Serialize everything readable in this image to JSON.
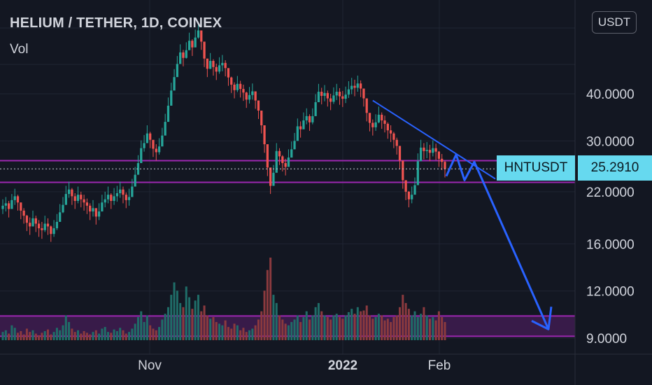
{
  "header": {
    "title": "HELIUM / TETHER, 1D, COINEX",
    "indicator": "Vol",
    "currency_button": "USDT"
  },
  "last_price": {
    "symbol": "HNTUSDT",
    "price": "25.2910"
  },
  "colors": {
    "background": "#131722",
    "up": "#26a69a",
    "down": "#ef5350",
    "volume_up": "#1f6d68",
    "volume_down": "#8b3a3e",
    "zone": "#9c27b0",
    "trendline": "#2962ff",
    "tag": "#66d9ef"
  },
  "chart_data": {
    "type": "candlestick",
    "title": "HELIUM / TETHER, 1D, COINEX",
    "xlabel": "",
    "ylabel": "",
    "x_ticks": [
      "Nov",
      "2022",
      "Feb"
    ],
    "y_ticks": [
      "40.0000",
      "30.0000",
      "22.0000",
      "16.0000",
      "12.0000",
      "9.0000"
    ],
    "y_scale": "log",
    "ylim": [
      8.85,
      66
    ],
    "grid": true,
    "legend": "none",
    "last_price": 25.291,
    "series": [
      {
        "name": "Price",
        "close": [
          20.2,
          20.5,
          19.8,
          20.9,
          21.4,
          20.6,
          19.6,
          19.0,
          18.2,
          17.8,
          18.7,
          18.1,
          17.6,
          17.4,
          18.1,
          17.8,
          17.0,
          17.6,
          18.3,
          19.4,
          20.3,
          21.7,
          22.3,
          21.4,
          20.8,
          21.6,
          21.0,
          20.6,
          20.2,
          19.5,
          19.9,
          18.9,
          19.5,
          20.6,
          21.0,
          21.6,
          20.8,
          21.4,
          21.8,
          22.3,
          21.6,
          20.9,
          21.3,
          22.7,
          24.4,
          26.2,
          28.7,
          29.6,
          31.4,
          30.2,
          28.6,
          28.0,
          29.0,
          31.0,
          33.7,
          37.2,
          40.8,
          44.3,
          48.0,
          51.5,
          49.8,
          52.2,
          55.3,
          53.1,
          56.4,
          58.9,
          55.0,
          49.6,
          46.6,
          48.9,
          47.1,
          45.8,
          47.6,
          48.3,
          46.8,
          44.2,
          42.3,
          40.9,
          42.5,
          41.2,
          40.3,
          38.6,
          39.7,
          40.6,
          38.4,
          36.1,
          33.0,
          29.4,
          25.5,
          22.8,
          24.7,
          28.2,
          27.3,
          26.2,
          25.6,
          27.1,
          28.5,
          30.0,
          32.8,
          32.2,
          34.0,
          34.9,
          33.6,
          34.9,
          38.0,
          40.5,
          39.5,
          40.2,
          38.9,
          38.1,
          39.6,
          40.5,
          39.4,
          38.8,
          39.8,
          41.1,
          42.0,
          41.5,
          42.6,
          41.3,
          38.9,
          35.6,
          33.5,
          32.6,
          33.6,
          35.2,
          34.0,
          33.3,
          32.0,
          31.4,
          30.2,
          29.1,
          26.6,
          23.6,
          22.0,
          21.0,
          21.6,
          22.9,
          26.5,
          28.8,
          28.2,
          28.4,
          27.9,
          28.7,
          28.1,
          26.9,
          26.4,
          25.3
        ],
        "high": [
          21.0,
          21.3,
          20.8,
          21.7,
          22.4,
          21.6,
          20.6,
          19.9,
          19.1,
          18.8,
          19.6,
          19.0,
          18.5,
          18.3,
          19.0,
          18.7,
          17.9,
          18.5,
          19.2,
          20.4,
          21.3,
          22.8,
          23.4,
          22.5,
          21.8,
          22.7,
          22.0,
          21.6,
          21.1,
          20.5,
          20.9,
          19.9,
          20.5,
          21.6,
          22.0,
          22.7,
          21.8,
          22.5,
          22.8,
          23.4,
          22.7,
          21.9,
          22.4,
          23.8,
          25.6,
          27.5,
          30.1,
          31.1,
          33.0,
          31.7,
          30.0,
          29.4,
          30.5,
          32.5,
          35.4,
          39.1,
          42.8,
          46.5,
          50.4,
          54.1,
          52.3,
          54.8,
          58.1,
          55.8,
          59.2,
          61.8,
          57.8,
          52.1,
          48.9,
          51.3,
          49.4,
          48.1,
          50.0,
          50.7,
          49.1,
          46.4,
          44.4,
          42.9,
          44.6,
          43.3,
          42.3,
          40.5,
          41.7,
          42.6,
          40.3,
          37.9,
          34.7,
          30.9,
          26.8,
          23.9,
          25.9,
          29.6,
          28.7,
          27.5,
          26.9,
          28.5,
          29.9,
          31.5,
          34.4,
          33.8,
          35.7,
          36.6,
          35.3,
          36.6,
          39.9,
          42.5,
          41.5,
          42.2,
          40.8,
          40.0,
          41.6,
          42.5,
          41.4,
          40.7,
          41.8,
          43.2,
          44.1,
          43.6,
          44.7,
          43.4,
          40.8,
          37.4,
          35.2,
          34.2,
          35.3,
          37.0,
          35.7,
          35.0,
          33.6,
          33.0,
          31.7,
          30.6,
          27.9,
          24.8,
          23.1,
          22.1,
          22.7,
          24.0,
          27.8,
          30.2,
          29.6,
          29.8,
          29.3,
          30.1,
          29.5,
          28.2,
          27.7,
          26.6
        ],
        "low": [
          19.2,
          19.5,
          18.8,
          19.9,
          20.3,
          19.6,
          18.6,
          18.1,
          17.3,
          16.9,
          17.8,
          17.2,
          16.7,
          16.5,
          17.2,
          16.9,
          16.2,
          16.7,
          17.4,
          18.4,
          19.3,
          20.6,
          21.2,
          20.3,
          19.8,
          20.5,
          20.0,
          19.6,
          19.2,
          18.5,
          18.9,
          18.0,
          18.5,
          19.6,
          20.0,
          20.5,
          19.8,
          20.3,
          20.7,
          21.2,
          20.5,
          19.9,
          20.2,
          21.6,
          23.2,
          24.9,
          27.3,
          28.1,
          29.8,
          28.7,
          27.2,
          26.6,
          27.6,
          29.5,
          32.0,
          35.3,
          38.8,
          42.1,
          45.6,
          48.9,
          47.3,
          49.6,
          52.5,
          50.4,
          53.6,
          56.0,
          52.3,
          47.1,
          44.3,
          46.5,
          44.7,
          43.5,
          45.2,
          45.9,
          44.5,
          42.0,
          40.2,
          38.9,
          40.4,
          39.1,
          38.3,
          36.7,
          37.7,
          38.6,
          36.5,
          34.3,
          31.4,
          27.9,
          24.2,
          21.7,
          23.5,
          26.8,
          25.9,
          24.9,
          24.3,
          25.7,
          27.1,
          28.5,
          31.2,
          30.6,
          32.3,
          33.2,
          31.9,
          33.2,
          36.1,
          38.5,
          37.5,
          38.2,
          37.0,
          36.2,
          37.6,
          38.5,
          37.4,
          36.9,
          37.8,
          39.0,
          39.9,
          39.4,
          40.5,
          39.2,
          37.0,
          33.8,
          31.8,
          31.0,
          31.9,
          33.4,
          32.3,
          31.6,
          30.4,
          29.8,
          28.7,
          27.6,
          25.3,
          22.4,
          20.9,
          20.0,
          20.5,
          21.8,
          25.2,
          27.4,
          26.8,
          27.0,
          26.5,
          27.3,
          26.7,
          25.6,
          25.1,
          24.0
        ],
        "volume": [
          0.1,
          0.12,
          0.08,
          0.18,
          0.15,
          0.09,
          0.11,
          0.07,
          0.14,
          0.1,
          0.12,
          0.08,
          0.06,
          0.09,
          0.11,
          0.13,
          0.07,
          0.1,
          0.15,
          0.12,
          0.18,
          0.3,
          0.22,
          0.14,
          0.1,
          0.12,
          0.08,
          0.11,
          0.09,
          0.07,
          0.1,
          0.12,
          0.08,
          0.14,
          0.16,
          0.1,
          0.09,
          0.13,
          0.11,
          0.15,
          0.12,
          0.08,
          0.1,
          0.14,
          0.2,
          0.28,
          0.35,
          0.22,
          0.3,
          0.18,
          0.14,
          0.12,
          0.16,
          0.25,
          0.32,
          0.4,
          0.55,
          0.7,
          0.6,
          0.45,
          0.4,
          0.65,
          0.52,
          0.38,
          0.48,
          0.55,
          0.35,
          0.42,
          0.3,
          0.26,
          0.28,
          0.22,
          0.2,
          0.18,
          0.24,
          0.16,
          0.14,
          0.2,
          0.18,
          0.12,
          0.15,
          0.1,
          0.12,
          0.14,
          0.18,
          0.25,
          0.35,
          0.6,
          0.85,
          1.0,
          0.55,
          0.45,
          0.3,
          0.25,
          0.2,
          0.18,
          0.22,
          0.25,
          0.3,
          0.22,
          0.28,
          0.35,
          0.25,
          0.3,
          0.4,
          0.45,
          0.35,
          0.3,
          0.28,
          0.25,
          0.3,
          0.32,
          0.28,
          0.26,
          0.3,
          0.34,
          0.38,
          0.32,
          0.4,
          0.35,
          0.36,
          0.42,
          0.3,
          0.26,
          0.28,
          0.32,
          0.3,
          0.24,
          0.26,
          0.22,
          0.28,
          0.3,
          0.4,
          0.55,
          0.45,
          0.38,
          0.3,
          0.35,
          0.28,
          0.32,
          0.4,
          0.3,
          0.26,
          0.28,
          0.24,
          0.35,
          0.28,
          0.22
        ]
      }
    ],
    "annotations": {
      "zones": [
        {
          "from": 23.3,
          "to": 26.6
        },
        {
          "from": 9.1,
          "to": 10.3
        }
      ],
      "descending_trendline": {
        "start_bar": 123,
        "start_price": 38.4,
        "end_price": 23.8
      }
    }
  }
}
